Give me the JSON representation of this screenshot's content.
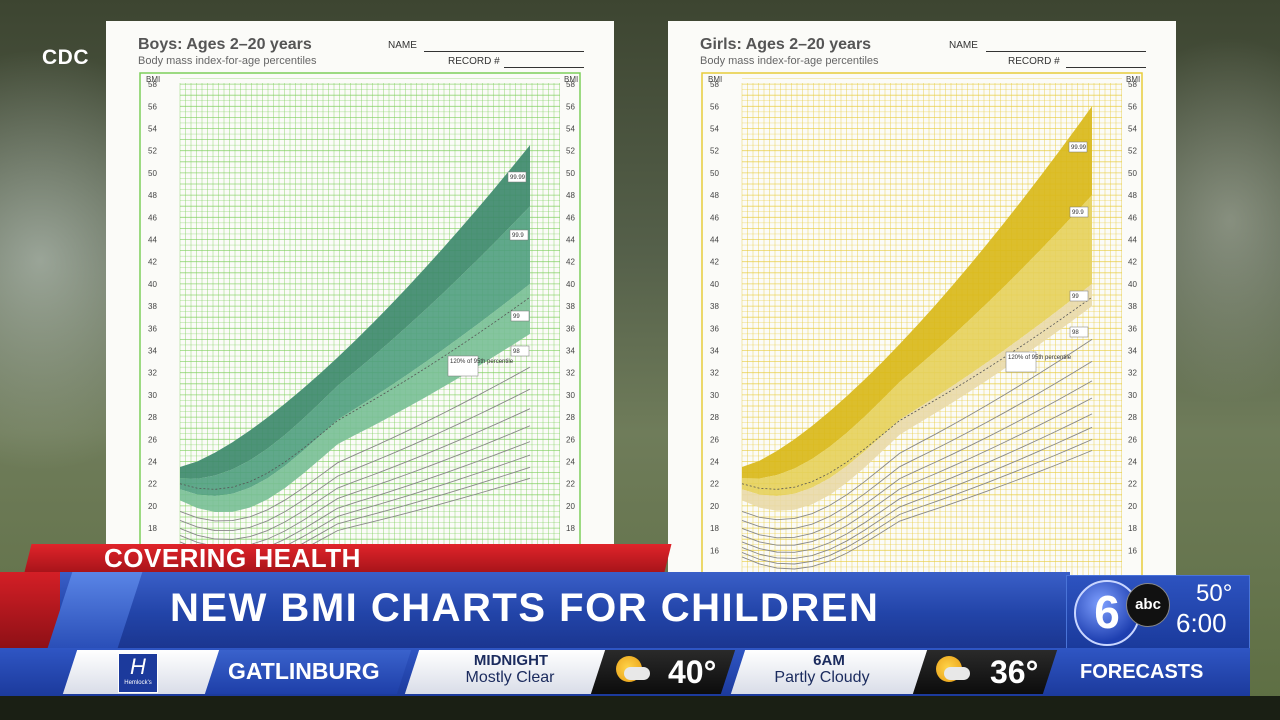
{
  "source_label": "CDC",
  "boys_chart": {
    "title": "Boys: Ages 2–20 years",
    "subtitle": "Body mass index-for-age percentiles",
    "name_label": "NAME",
    "record_label": "RECORD #",
    "axis_label": "BMI",
    "ticks": [
      "58",
      "56",
      "54",
      "52",
      "50",
      "48",
      "46",
      "44",
      "42",
      "40",
      "38",
      "36",
      "34",
      "32",
      "30",
      "28",
      "26",
      "24",
      "22",
      "20",
      "18"
    ],
    "percentile_labels": [
      "99.99",
      "99.9",
      "99",
      "98",
      "120% of 95th percentile"
    ],
    "grid_color": "#7ccf5a",
    "band_colors": [
      "#3e8a6c",
      "#4f9e7e",
      "#78bf95"
    ]
  },
  "girls_chart": {
    "title": "Girls: Ages 2–20 years",
    "subtitle": "Body mass index-for-age percentiles",
    "name_label": "NAME",
    "record_label": "RECORD #",
    "axis_label": "BMI",
    "ticks": [
      "58",
      "56",
      "54",
      "52",
      "50",
      "48",
      "46",
      "44",
      "42",
      "40",
      "38",
      "36",
      "34",
      "32",
      "30",
      "28",
      "26",
      "24",
      "22",
      "20",
      "18",
      "16"
    ],
    "percentile_labels": [
      "99.99",
      "99.9",
      "99",
      "98",
      "120% of 95th percentile"
    ],
    "grid_color": "#e8cc3a",
    "band_colors": [
      "#d9b81a",
      "#e6d05a",
      "#e9d9a8"
    ]
  },
  "lower_third": {
    "kicker": "COVERING HEALTH",
    "headline": "NEW BMI CHARTS FOR CHILDREN",
    "station_number": "6",
    "network": "abc",
    "temperature": "50°",
    "time": "6:00"
  },
  "ticker": {
    "sponsor": "Hemlock's",
    "city": "GATLINBURG",
    "forecast": [
      {
        "time": "MIDNIGHT",
        "condition": "Mostly Clear",
        "temp": "40°",
        "icon": "partly-cloudy-icon"
      },
      {
        "time": "6AM",
        "condition": "Partly Cloudy",
        "temp": "36°",
        "icon": "partly-cloudy-icon"
      }
    ],
    "label": "FORECASTS"
  },
  "colors": {
    "ticker_blue": "#2244a8",
    "kicker_red": "#d41f26"
  }
}
